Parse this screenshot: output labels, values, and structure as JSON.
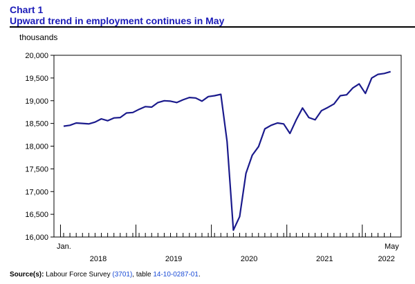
{
  "header": {
    "chart_number": "Chart 1",
    "title": "Upward trend in employment continues in May"
  },
  "source": {
    "label": "Source(s):",
    "text_before": " Labour Force Survey ",
    "link1": "(3701)",
    "text_middle": ", table ",
    "link2": "14-10-0287-01",
    "text_after": "."
  },
  "colors": {
    "title": "#1a1ab8",
    "line": "#1a1a8c",
    "link": "#1a4bd6"
  },
  "chart_data": {
    "type": "line",
    "title": "Upward trend in employment continues in May",
    "ylabel": "thousands",
    "xlabel": "",
    "ylim": [
      16000,
      20000
    ],
    "y_ticks": [
      16000,
      16500,
      17000,
      17500,
      18000,
      18500,
      19000,
      19500,
      20000
    ],
    "y_tick_labels": [
      "16,000",
      "16,500",
      "17,000",
      "17,500",
      "18,000",
      "18,500",
      "19,000",
      "19,500",
      "20,000"
    ],
    "x_start_label": "Jan.",
    "x_end_label": "May",
    "year_labels": [
      "2018",
      "2019",
      "2020",
      "2021",
      "2022"
    ],
    "grid": false,
    "series": [
      {
        "values": [
          18440,
          18460,
          18510,
          18500,
          18490,
          18530,
          18600,
          18560,
          18620,
          18630,
          18730,
          18740,
          18810,
          18870,
          18860,
          18960,
          19000,
          18990,
          18960,
          19020,
          19070,
          19060,
          18990,
          19090,
          19110,
          19140,
          18100,
          16150,
          16450,
          17400,
          17800,
          17990,
          18380,
          18460,
          18510,
          18490,
          18280,
          18580,
          18840,
          18630,
          18580,
          18780,
          18850,
          18930,
          19110,
          19130,
          19280,
          19370,
          19160,
          19500,
          19580,
          19600,
          19640
        ]
      }
    ]
  }
}
